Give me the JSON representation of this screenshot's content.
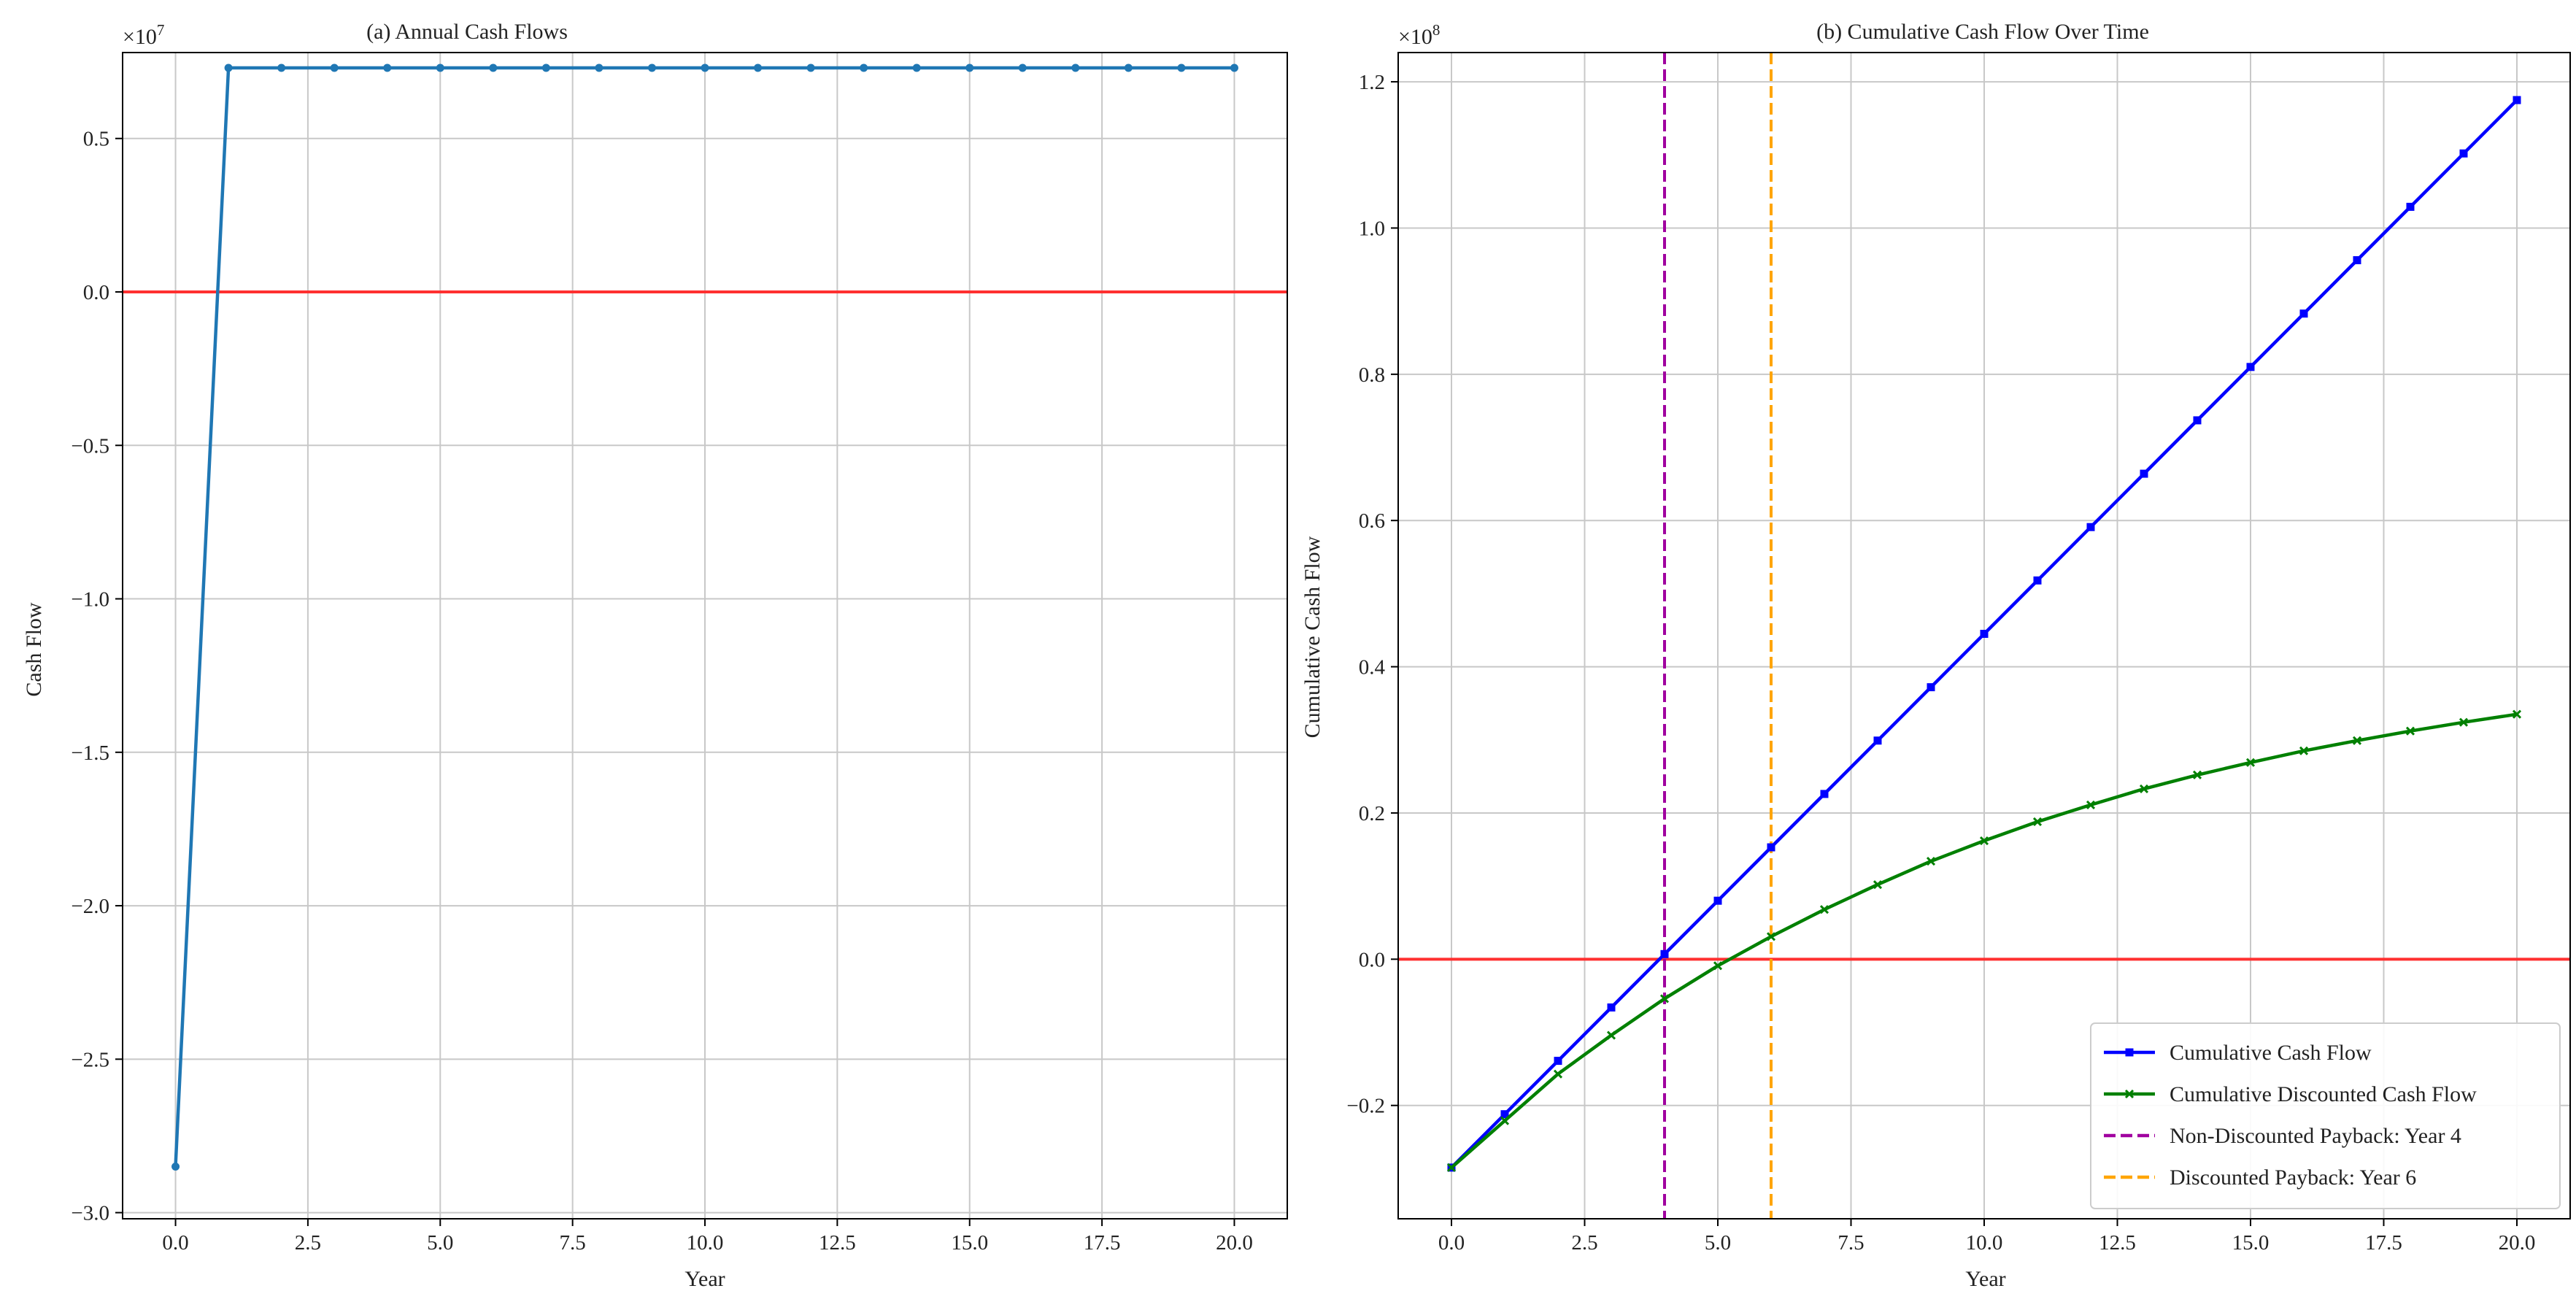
{
  "chart_data": [
    {
      "type": "line",
      "title": "(a) Annual Cash Flows",
      "xlabel": "Year",
      "ylabel": "Cash Flow",
      "offset_label": "×10",
      "offset_exp": "7",
      "xlim": [
        -1,
        21
      ],
      "ylim": [
        -3.02,
        0.78
      ],
      "xticks": [
        0,
        2.5,
        5,
        7.5,
        10,
        12.5,
        15,
        17.5,
        20
      ],
      "xtick_labels": [
        "0.0",
        "2.5",
        "5.0",
        "7.5",
        "10.0",
        "12.5",
        "15.0",
        "17.5",
        "20.0"
      ],
      "yticks": [
        -3,
        -2.5,
        -2,
        -1.5,
        -1,
        -0.5,
        0,
        0.5
      ],
      "ytick_labels": [
        "−3.0",
        "−2.5",
        "−2.0",
        "−1.5",
        "−1.0",
        "−0.5",
        "0.0",
        "0.5"
      ],
      "grid": true,
      "reference_lines": [
        {
          "axis": "y",
          "value": 0,
          "color": "#ff3030"
        }
      ],
      "series": [
        {
          "color": "#1f77b4",
          "marker": "circle",
          "x": [
            0,
            1,
            2,
            3,
            4,
            5,
            6,
            7,
            8,
            9,
            10,
            11,
            12,
            13,
            14,
            15,
            16,
            17,
            18,
            19,
            20
          ],
          "values": [
            -2.85,
            0.73,
            0.73,
            0.73,
            0.73,
            0.73,
            0.73,
            0.73,
            0.73,
            0.73,
            0.73,
            0.73,
            0.73,
            0.73,
            0.73,
            0.73,
            0.73,
            0.73,
            0.73,
            0.73,
            0.73
          ]
        }
      ]
    },
    {
      "type": "line",
      "title": "(b) Cumulative Cash Flow Over Time",
      "xlabel": "Year",
      "ylabel": "Cumulative Cash Flow",
      "offset_label": "×10",
      "offset_exp": "8",
      "xlim": [
        -1,
        21
      ],
      "ylim": [
        -0.355,
        1.24
      ],
      "xticks": [
        0,
        2.5,
        5,
        7.5,
        10,
        12.5,
        15,
        17.5,
        20
      ],
      "xtick_labels": [
        "0.0",
        "2.5",
        "5.0",
        "7.5",
        "10.0",
        "12.5",
        "15.0",
        "17.5",
        "20.0"
      ],
      "yticks": [
        -0.2,
        0,
        0.2,
        0.4,
        0.6,
        0.8,
        1.0,
        1.2
      ],
      "ytick_labels": [
        "−0.2",
        "0.0",
        "0.2",
        "0.4",
        "0.6",
        "0.8",
        "1.0",
        "1.2"
      ],
      "grid": true,
      "legend_position": "lower-right",
      "reference_lines": [
        {
          "axis": "y",
          "value": 0,
          "color": "#ff3030"
        },
        {
          "axis": "x",
          "value": 4,
          "color": "#a0009f",
          "dashed": true
        },
        {
          "axis": "x",
          "value": 6,
          "color": "#ffa500",
          "dashed": true
        }
      ],
      "series": [
        {
          "name": "Cumulative Cash Flow",
          "color": "#0000ff",
          "marker": "square",
          "x": [
            0,
            1,
            2,
            3,
            4,
            5,
            6,
            7,
            8,
            9,
            10,
            11,
            12,
            13,
            14,
            15,
            16,
            17,
            18,
            19,
            20
          ],
          "values": [
            -0.285,
            -0.212,
            -0.139,
            -0.066,
            0.007,
            0.08,
            0.153,
            0.226,
            0.299,
            0.372,
            0.445,
            0.518,
            0.591,
            0.664,
            0.737,
            0.81,
            0.883,
            0.956,
            1.029,
            1.102,
            1.175
          ]
        },
        {
          "name": "Cumulative Discounted Cash Flow",
          "color": "#008000",
          "marker": "x",
          "x": [
            0,
            1,
            2,
            3,
            4,
            5,
            6,
            7,
            8,
            9,
            10,
            11,
            12,
            13,
            14,
            15,
            16,
            17,
            18,
            19,
            20
          ],
          "values": [
            -0.285,
            -0.221,
            -0.157,
            -0.104,
            -0.054,
            -0.009,
            0.031,
            0.068,
            0.102,
            0.134,
            0.162,
            0.188,
            0.211,
            0.233,
            0.252,
            0.269,
            0.285,
            0.299,
            0.312,
            0.324,
            0.335
          ]
        }
      ],
      "legend": [
        {
          "label": "Cumulative Cash Flow",
          "color": "#0000ff",
          "style": "solid",
          "marker": "square"
        },
        {
          "label": "Cumulative Discounted Cash Flow",
          "color": "#008000",
          "style": "solid",
          "marker": "x"
        },
        {
          "label": "Non-Discounted Payback: Year 4",
          "color": "#a0009f",
          "style": "dashed"
        },
        {
          "label": "Discounted Payback: Year 6",
          "color": "#ffa500",
          "style": "dashed"
        }
      ]
    }
  ]
}
